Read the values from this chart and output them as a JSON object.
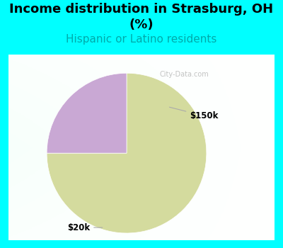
{
  "title": "Income distribution in Strasburg, OH\n(%)",
  "subtitle": "Hispanic or Latino residents",
  "slices": [
    75,
    25
  ],
  "colors": [
    "#d4db9e",
    "#c9a8d4"
  ],
  "background_top": "#00ffff",
  "background_chart_color": "#c8edd8",
  "title_fontsize": 13,
  "subtitle_fontsize": 11,
  "subtitle_color": "#00aaaa",
  "label_color": "#000000",
  "watermark": "City-Data.com",
  "startangle": 90
}
